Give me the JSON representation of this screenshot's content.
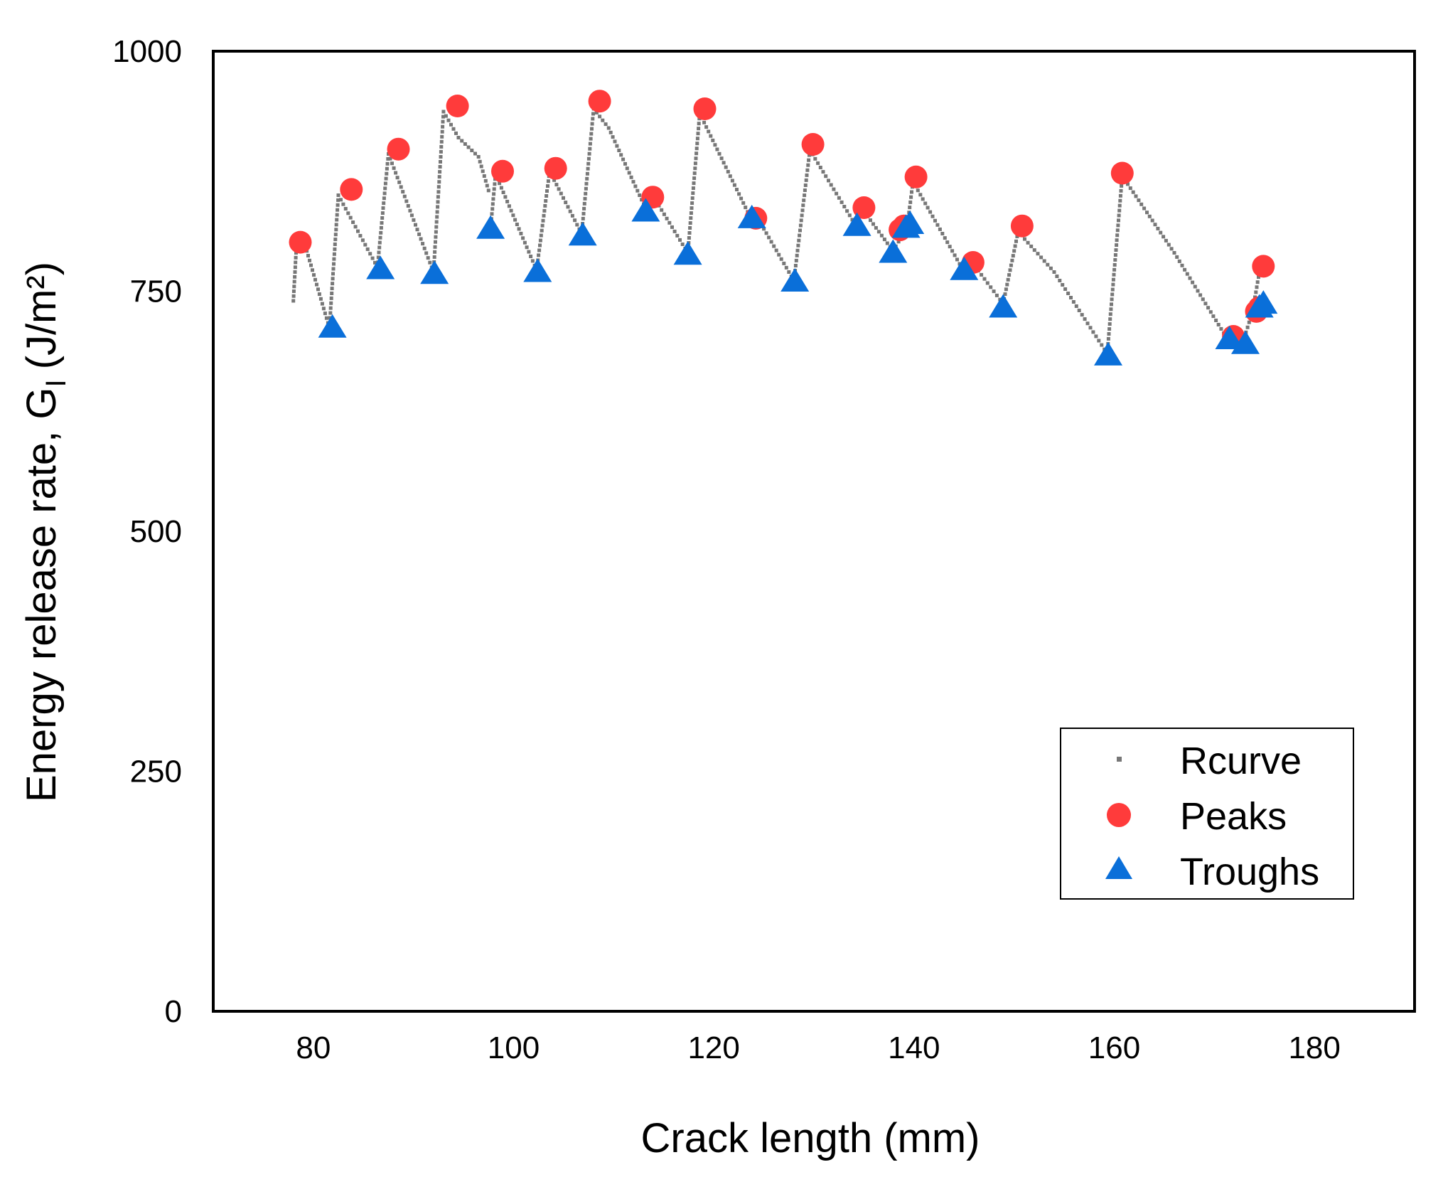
{
  "chart_data": {
    "type": "scatter",
    "title": "",
    "xlabel": "Crack length (mm)",
    "ylabel_main": "Energy release rate, G",
    "ylabel_sub": "I",
    "ylabel_unit": "(J/m²)",
    "xlim": [
      70,
      190
    ],
    "ylim": [
      0,
      1000
    ],
    "xticks": [
      "80",
      "100",
      "120",
      "140",
      "160",
      "180"
    ],
    "yticks": [
      "0",
      "250",
      "500",
      "750",
      "1000"
    ],
    "legend_position": "bottom-right",
    "colors": {
      "rcurve": "#777777",
      "peaks": "#ff3b3b",
      "troughs": "#0a6fd9",
      "frame": "#000000"
    },
    "series": [
      {
        "name": "Rcurve",
        "marker": "dot",
        "segments": [
          [
            [
              78,
              740
            ],
            [
              78.3,
              795
            ],
            [
              79.2,
              797
            ],
            [
              81.6,
              712
            ]
          ],
          [
            [
              81.6,
              712
            ],
            [
              82.5,
              850
            ],
            [
              86.4,
              775
            ]
          ],
          [
            [
              86.4,
              775
            ],
            [
              87.5,
              893
            ],
            [
              92,
              770
            ]
          ],
          [
            [
              92,
              770
            ],
            [
              93,
              937
            ],
            [
              94.5,
              910
            ],
            [
              96.5,
              890
            ],
            [
              97.5,
              855
            ]
          ],
          [
            [
              97.7,
              815
            ],
            [
              98.2,
              872
            ],
            [
              102.3,
              772
            ]
          ],
          [
            [
              102.3,
              772
            ],
            [
              103.6,
              875
            ],
            [
              106.8,
              810
            ]
          ],
          [
            [
              106.8,
              810
            ],
            [
              108,
              940
            ],
            [
              109.5,
              920
            ],
            [
              113.2,
              836
            ]
          ],
          [
            [
              113.2,
              836
            ],
            [
              114,
              848
            ],
            [
              117.4,
              790
            ]
          ],
          [
            [
              117.4,
              790
            ],
            [
              118.6,
              935
            ],
            [
              123.6,
              828
            ]
          ],
          [
            [
              123.6,
              828
            ],
            [
              124.5,
              824
            ],
            [
              128,
              761
            ]
          ],
          [
            [
              128,
              761
            ],
            [
              129.6,
              897
            ],
            [
              134.1,
              820
            ]
          ],
          [
            [
              134.1,
              820
            ],
            [
              134.8,
              836
            ],
            [
              137.9,
              792
            ]
          ],
          [
            [
              137.9,
              792
            ],
            [
              139.3,
              816
            ],
            [
              139.9,
              864
            ],
            [
              144.8,
              774
            ]
          ],
          [
            [
              144.8,
              774
            ],
            [
              145.8,
              780
            ],
            [
              148.9,
              737
            ]
          ],
          [
            [
              148.9,
              737
            ],
            [
              150.4,
              812
            ],
            [
              154,
              770
            ],
            [
              156.5,
              730
            ],
            [
              159.3,
              685
            ]
          ],
          [
            [
              159.3,
              685
            ],
            [
              160.8,
              870
            ],
            [
              166,
              790
            ],
            [
              171.2,
              702
            ]
          ],
          [
            [
              171.2,
              702
            ],
            [
              173,
              702
            ]
          ],
          [
            [
              173,
              702
            ],
            [
              173.8,
              728
            ],
            [
              174.5,
              770
            ]
          ]
        ]
      },
      {
        "name": "Peaks",
        "marker": "circle",
        "points": [
          [
            78.7,
            801
          ],
          [
            83.8,
            856
          ],
          [
            88.5,
            898
          ],
          [
            94.4,
            943
          ],
          [
            98.9,
            875
          ],
          [
            104.2,
            878
          ],
          [
            108.6,
            948
          ],
          [
            113.9,
            848
          ],
          [
            119.1,
            940
          ],
          [
            124.2,
            826
          ],
          [
            129.9,
            903
          ],
          [
            135,
            837
          ],
          [
            138.6,
            814
          ],
          [
            139,
            818
          ],
          [
            140.2,
            869
          ],
          [
            145.9,
            780
          ],
          [
            150.8,
            818
          ],
          [
            160.8,
            873
          ],
          [
            171.9,
            703
          ],
          [
            174.2,
            729
          ],
          [
            174.5,
            733
          ],
          [
            174.9,
            776
          ]
        ]
      },
      {
        "name": "Troughs",
        "marker": "triangle",
        "points": [
          [
            81.9,
            712
          ],
          [
            86.7,
            773
          ],
          [
            92.1,
            768
          ],
          [
            97.7,
            815
          ],
          [
            102.4,
            770
          ],
          [
            106.9,
            808
          ],
          [
            113.2,
            833
          ],
          [
            117.4,
            788
          ],
          [
            123.8,
            826
          ],
          [
            128.1,
            760
          ],
          [
            134.3,
            818
          ],
          [
            137.9,
            790
          ],
          [
            139.2,
            816
          ],
          [
            139.6,
            820
          ],
          [
            145,
            772
          ],
          [
            148.9,
            733
          ],
          [
            159.4,
            683
          ],
          [
            171.5,
            700
          ],
          [
            173.1,
            695
          ],
          [
            174.5,
            733
          ],
          [
            174.9,
            737
          ]
        ]
      }
    ]
  }
}
